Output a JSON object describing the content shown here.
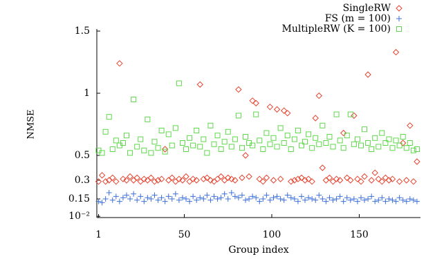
{
  "chart_data": {
    "type": "scatter",
    "ylabel": "NMSE",
    "xlabel": "Group index",
    "x": [
      1,
      3,
      5,
      7,
      9,
      11,
      13,
      15,
      17,
      19,
      21,
      23,
      25,
      27,
      29,
      31,
      33,
      35,
      37,
      39,
      41,
      43,
      45,
      47,
      49,
      51,
      53,
      55,
      57,
      59,
      61,
      63,
      65,
      67,
      69,
      71,
      73,
      75,
      77,
      79,
      81,
      83,
      85,
      87,
      89,
      91,
      93,
      95,
      97,
      99,
      101,
      103,
      105,
      107,
      109,
      111,
      113,
      115,
      117,
      119,
      121,
      123,
      125,
      127,
      129,
      131,
      133,
      135,
      137,
      139,
      141,
      143,
      145,
      147,
      149,
      151,
      153,
      155,
      157,
      159,
      161,
      163,
      165,
      167,
      169,
      171,
      173,
      175,
      177,
      179,
      181,
      183
    ],
    "series": [
      {
        "name": "SingleRW",
        "color": "#e8432e",
        "marker": "diamond",
        "values": [
          0.29,
          0.34,
          0.29,
          0.3,
          0.32,
          0.29,
          1.24,
          0.31,
          0.3,
          0.33,
          0.3,
          0.32,
          0.29,
          0.31,
          0.3,
          0.32,
          0.29,
          0.3,
          0.31,
          0.55,
          0.3,
          0.32,
          0.29,
          0.31,
          0.3,
          0.33,
          0.29,
          0.31,
          0.3,
          1.07,
          0.31,
          0.32,
          0.3,
          0.29,
          0.31,
          0.33,
          0.3,
          0.32,
          0.31,
          0.3,
          1.03,
          0.32,
          0.5,
          0.33,
          0.94,
          0.92,
          0.31,
          0.29,
          0.32,
          0.89,
          0.3,
          0.87,
          0.31,
          0.86,
          0.84,
          0.29,
          0.3,
          0.31,
          0.32,
          0.3,
          0.31,
          0.29,
          0.8,
          0.98,
          0.4,
          0.3,
          0.32,
          0.29,
          0.31,
          0.3,
          0.68,
          0.32,
          0.3,
          0.82,
          0.31,
          0.29,
          0.33,
          1.15,
          0.3,
          0.36,
          0.31,
          0.29,
          0.32,
          0.3,
          0.31,
          1.33,
          0.29,
          0.6,
          0.3,
          0.74,
          0.29,
          0.45
        ]
      },
      {
        "name": "FS (m = 100)",
        "color": "#3c6fd8",
        "marker": "plus",
        "values": [
          0.13,
          0.12,
          0.15,
          0.2,
          0.14,
          0.17,
          0.13,
          0.16,
          0.18,
          0.15,
          0.19,
          0.14,
          0.17,
          0.13,
          0.16,
          0.15,
          0.18,
          0.14,
          0.16,
          0.13,
          0.17,
          0.15,
          0.19,
          0.14,
          0.16,
          0.15,
          0.13,
          0.17,
          0.14,
          0.16,
          0.15,
          0.18,
          0.14,
          0.17,
          0.15,
          0.16,
          0.19,
          0.15,
          0.2,
          0.17,
          0.16,
          0.18,
          0.14,
          0.15,
          0.17,
          0.16,
          0.13,
          0.15,
          0.18,
          0.14,
          0.16,
          0.17,
          0.15,
          0.14,
          0.18,
          0.16,
          0.15,
          0.13,
          0.17,
          0.14,
          0.16,
          0.15,
          0.14,
          0.18,
          0.15,
          0.13,
          0.16,
          0.14,
          0.15,
          0.17,
          0.13,
          0.16,
          0.14,
          0.15,
          0.13,
          0.16,
          0.14,
          0.15,
          0.17,
          0.13,
          0.14,
          0.16,
          0.13,
          0.15,
          0.14,
          0.13,
          0.16,
          0.14,
          0.13,
          0.15,
          0.14,
          0.13
        ]
      },
      {
        "name": "MultipleRW (K = 100)",
        "color": "#5ed84a",
        "marker": "square",
        "values": [
          0.54,
          0.52,
          0.69,
          0.81,
          0.55,
          0.62,
          0.58,
          0.6,
          0.66,
          0.52,
          0.95,
          0.57,
          0.63,
          0.54,
          0.79,
          0.52,
          0.61,
          0.56,
          0.7,
          0.53,
          0.67,
          0.58,
          0.72,
          1.08,
          0.6,
          0.55,
          0.64,
          0.58,
          0.7,
          0.57,
          0.63,
          0.52,
          0.74,
          0.59,
          0.66,
          0.55,
          0.61,
          0.69,
          0.57,
          0.63,
          0.82,
          0.56,
          0.65,
          0.6,
          0.58,
          0.83,
          0.62,
          0.55,
          0.68,
          0.59,
          0.64,
          0.57,
          0.72,
          0.6,
          0.66,
          0.55,
          0.63,
          0.7,
          0.58,
          0.61,
          0.67,
          0.56,
          0.64,
          0.59,
          0.74,
          0.6,
          0.65,
          0.57,
          0.83,
          0.62,
          0.56,
          0.66,
          0.83,
          0.59,
          0.63,
          0.58,
          0.71,
          0.6,
          0.55,
          0.64,
          0.57,
          0.68,
          0.6,
          0.63,
          0.56,
          0.62,
          0.58,
          0.65,
          0.56,
          0.6,
          0.54,
          0.55
        ]
      }
    ],
    "xlim": [
      0,
      185
    ],
    "xticks": [
      1,
      50,
      100,
      150
    ],
    "ylim": [
      0,
      1.5
    ],
    "yticks": [
      {
        "value": 0.01,
        "label": "10⁻²"
      },
      0.15,
      0.3,
      0.5,
      1,
      1.5
    ],
    "legend": "upper right"
  }
}
